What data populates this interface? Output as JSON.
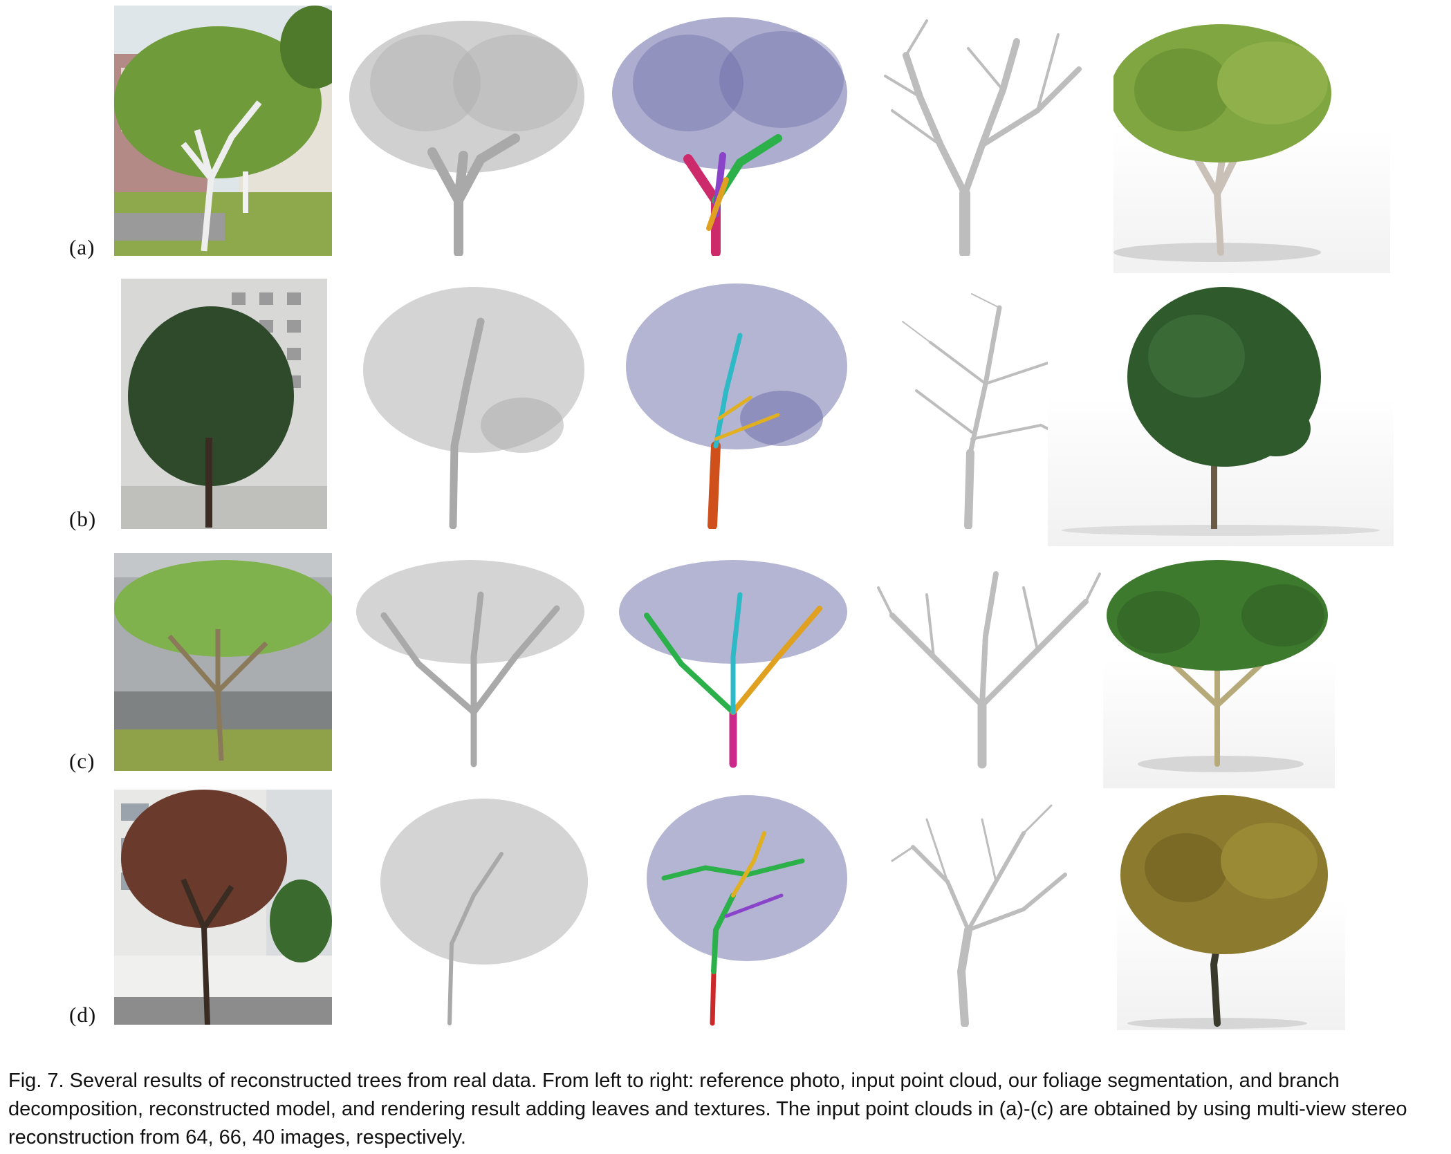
{
  "figure": {
    "rows": [
      {
        "label": "(a)"
      },
      {
        "label": "(b)"
      },
      {
        "label": "(c)"
      },
      {
        "label": "(d)"
      }
    ]
  },
  "caption": {
    "text": "Fig. 7.  Several results of reconstructed trees from real data. From left to right: reference photo, input point cloud, our foliage segmentation, and branch decomposition, reconstructed model, and rendering result adding leaves and textures. The input point clouds in (a)-(c) are obtained by using multi-view stereo reconstruction from 64, 66, 40 images, respectively."
  },
  "colors": {
    "point_cloud": "#a9a9a9",
    "foliage_points": "#6a6aa8",
    "branch_model": "#bdbdbd",
    "leaves_a": "#7fa640",
    "leaves_b": "#2f5a2c",
    "leaves_c": "#3e7a2e",
    "leaves_d": "#8c7a2e"
  }
}
